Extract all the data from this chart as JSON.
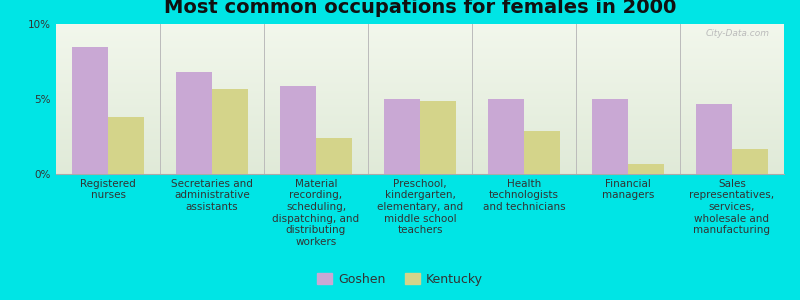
{
  "title": "Most common occupations for females in 2000",
  "categories": [
    "Registered\nnurses",
    "Secretaries and\nadministrative\nassistants",
    "Material\nrecording,\nscheduling,\ndispatching, and\ndistributing\nworkers",
    "Preschool,\nkindergarten,\nelementary, and\nmiddle school\nteachers",
    "Health\ntechnologists\nand technicians",
    "Financial\nmanagers",
    "Sales\nrepresentatives,\nservices,\nwholesale and\nmanufacturing"
  ],
  "goshen_values": [
    8.5,
    6.8,
    5.9,
    5.0,
    5.0,
    5.0,
    4.7
  ],
  "kentucky_values": [
    3.8,
    5.7,
    2.4,
    4.9,
    2.9,
    0.7,
    1.7
  ],
  "goshen_color": "#c9a8d4",
  "kentucky_color": "#d4d48a",
  "background_outer": "#00e5e5",
  "ylim": [
    0,
    10
  ],
  "yticks": [
    0,
    5,
    10
  ],
  "ytick_labels": [
    "0%",
    "5%",
    "10%"
  ],
  "legend_goshen": "Goshen",
  "legend_kentucky": "Kentucky",
  "title_fontsize": 14,
  "bar_width": 0.35,
  "axis_label_fontsize": 7.5,
  "legend_fontsize": 9
}
